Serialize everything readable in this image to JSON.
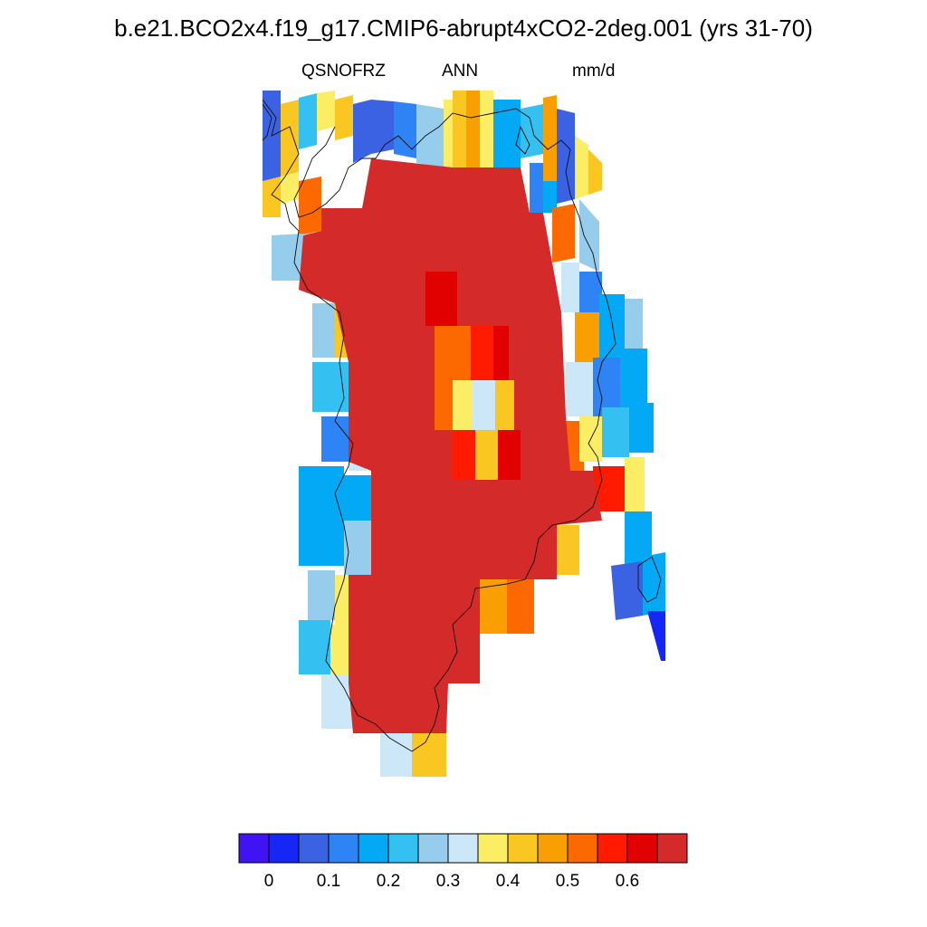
{
  "title": "b.e21.BCO2x4.f19_g17.CMIP6-abrupt4xCO2-2deg.001 (yrs 31-70)",
  "subtitle": {
    "variable": "QSNOFRZ",
    "season": "ANN",
    "units": "mm/d"
  },
  "colorbar": {
    "colors": [
      "#4013f4",
      "#1627f5",
      "#3b62e2",
      "#2e84f5",
      "#04a9f5",
      "#34c1f1",
      "#97cdec",
      "#cce7f7",
      "#fbee64",
      "#fac621",
      "#fa9f01",
      "#fc6900",
      "#ff1a00",
      "#e20101",
      "#d42a2a"
    ],
    "tick_labels": [
      "0",
      "0.1",
      "0.2",
      "0.3",
      "0.4",
      "0.5",
      "0.6"
    ]
  },
  "map": {
    "region": "Greenland",
    "colormap_type": "filled cells",
    "coastline": "thin black"
  }
}
